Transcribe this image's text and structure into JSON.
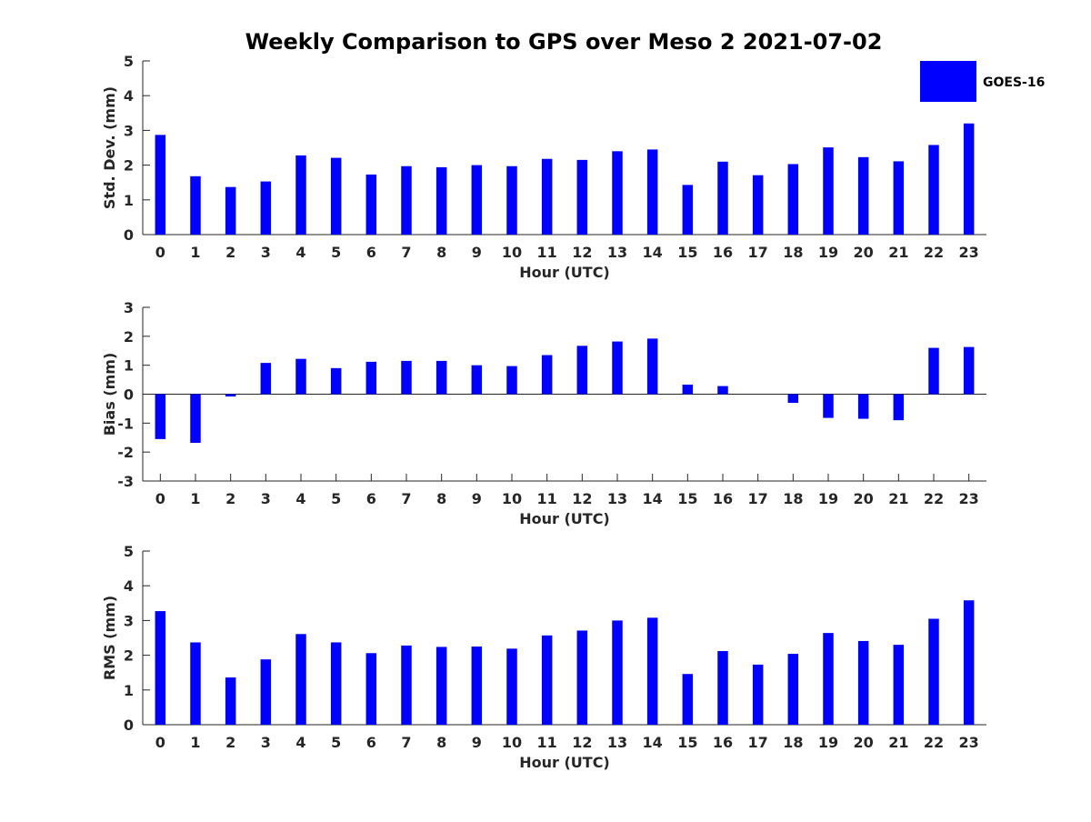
{
  "chart_data": {
    "title": "Weekly Comparison to GPS over Meso 2 2021-07-02",
    "legend": {
      "label": "GOES-16",
      "position": "top-right",
      "color": "#0000ff"
    },
    "bar_color": "#0000ff",
    "categories": [
      "0",
      "1",
      "2",
      "3",
      "4",
      "5",
      "6",
      "7",
      "8",
      "9",
      "10",
      "11",
      "12",
      "13",
      "14",
      "15",
      "16",
      "17",
      "18",
      "19",
      "20",
      "21",
      "22",
      "23"
    ],
    "panels": [
      {
        "type": "bar",
        "ylabel": "Std. Dev. (mm)",
        "xlabel": "Hour (UTC)",
        "ylim": [
          0,
          5
        ],
        "yticks": [
          0,
          1,
          2,
          3,
          4,
          5
        ],
        "series": [
          {
            "name": "GOES-16",
            "values": [
              2.87,
              1.68,
              1.37,
              1.53,
              2.28,
              2.21,
              1.73,
              1.97,
              1.94,
              2.0,
              1.97,
              2.18,
              2.15,
              2.4,
              2.45,
              1.43,
              2.1,
              1.71,
              2.03,
              2.51,
              2.23,
              2.11,
              2.58,
              3.2
            ]
          }
        ]
      },
      {
        "type": "bar",
        "ylabel": "Bias (mm)",
        "xlabel": "Hour (UTC)",
        "ylim": [
          -3,
          3
        ],
        "yticks": [
          -3,
          -2,
          -1,
          0,
          1,
          2,
          3
        ],
        "zero_line": true,
        "series": [
          {
            "name": "GOES-16",
            "values": [
              -1.55,
              -1.68,
              -0.08,
              1.08,
              1.22,
              0.9,
              1.12,
              1.15,
              1.15,
              1.0,
              0.97,
              1.35,
              1.67,
              1.82,
              1.92,
              0.33,
              0.28,
              0.0,
              -0.3,
              -0.82,
              -0.85,
              -0.9,
              1.6,
              1.63
            ]
          }
        ]
      },
      {
        "type": "bar",
        "ylabel": "RMS (mm)",
        "xlabel": "Hour (UTC)",
        "ylim": [
          0,
          5
        ],
        "yticks": [
          0,
          1,
          2,
          3,
          4,
          5
        ],
        "series": [
          {
            "name": "GOES-16",
            "values": [
              3.27,
              2.37,
              1.36,
              1.88,
              2.61,
              2.37,
              2.06,
              2.28,
              2.24,
              2.25,
              2.19,
              2.57,
              2.71,
              3.0,
              3.08,
              1.46,
              2.12,
              1.73,
              2.04,
              2.64,
              2.41,
              2.3,
              3.05,
              3.58
            ]
          }
        ]
      }
    ]
  }
}
